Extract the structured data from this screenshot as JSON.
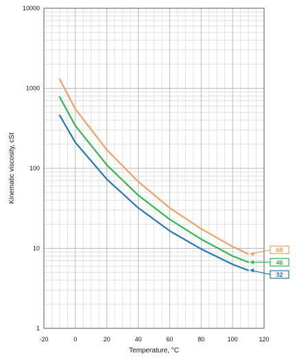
{
  "chart_data": {
    "type": "line",
    "title": "",
    "xlabel": "Temperature, °C",
    "ylabel": "Kinematic viscosity, cSt",
    "xlim": [
      -20,
      120
    ],
    "ylim": [
      1,
      10000
    ],
    "yscale": "log",
    "grid": true,
    "x_ticks": [
      "-20",
      "0",
      "20",
      "40",
      "60",
      "80",
      "100",
      "120"
    ],
    "y_ticks": [
      "1",
      "10",
      "100",
      "1000",
      "10000"
    ],
    "series": [
      {
        "name": "68",
        "color": "#f0a060",
        "x": [
          -10,
          0,
          20,
          40,
          60,
          80,
          100,
          110
        ],
        "y": [
          1300,
          550,
          170,
          68,
          32,
          17.5,
          10.5,
          8.5
        ]
      },
      {
        "name": "46",
        "color": "#2db84a",
        "x": [
          -10,
          0,
          20,
          40,
          60,
          80,
          100,
          110
        ],
        "y": [
          780,
          340,
          110,
          46,
          23,
          13,
          8,
          6.7
        ]
      },
      {
        "name": "32",
        "color": "#1f77b4",
        "x": [
          -10,
          0,
          20,
          40,
          60,
          80,
          100,
          110
        ],
        "y": [
          460,
          210,
          73,
          32,
          16.5,
          9.8,
          6.3,
          5.3
        ]
      }
    ]
  }
}
